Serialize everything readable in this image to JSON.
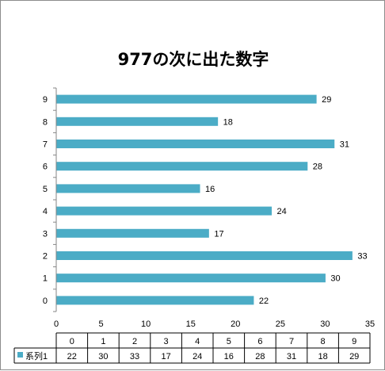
{
  "chart_data": {
    "type": "bar",
    "orientation": "horizontal",
    "title": "977の次に出た数字",
    "categories": [
      "0",
      "1",
      "2",
      "3",
      "4",
      "5",
      "6",
      "7",
      "8",
      "9"
    ],
    "series": [
      {
        "name": "系列1",
        "values": [
          22,
          30,
          33,
          17,
          24,
          16,
          28,
          31,
          18,
          29
        ]
      }
    ],
    "xlim": [
      0,
      35
    ],
    "x_ticks": [
      0,
      5,
      10,
      15,
      20,
      25,
      30,
      35
    ],
    "data_labels": true,
    "grid": false,
    "data_table": true,
    "colors": {
      "bar": "#4bacc6",
      "axis": "#868686",
      "table_border": "#000000"
    }
  }
}
